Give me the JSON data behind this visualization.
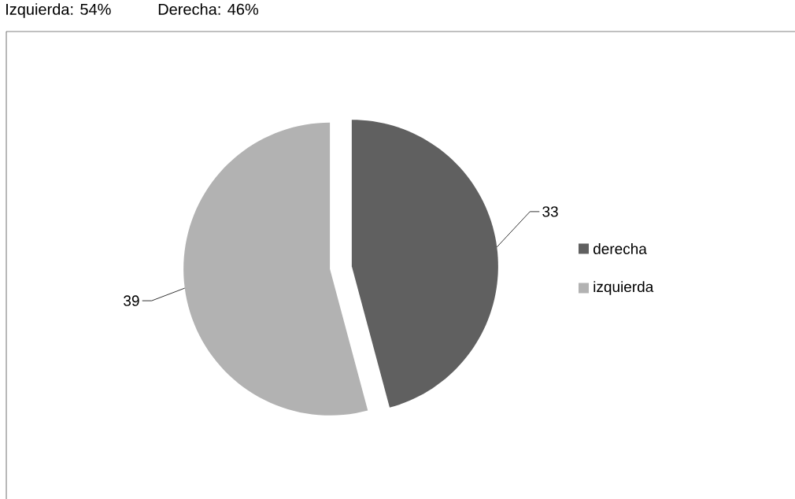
{
  "chart_data": {
    "type": "pie",
    "annotations": [
      "Izquierda: 54%",
      "Derecha: 46%"
    ],
    "categories": [
      "derecha",
      "izquierda"
    ],
    "values": [
      33,
      39
    ],
    "colors": [
      "#606060",
      "#b2b2b2"
    ],
    "data_labels": true,
    "legend": "right"
  }
}
